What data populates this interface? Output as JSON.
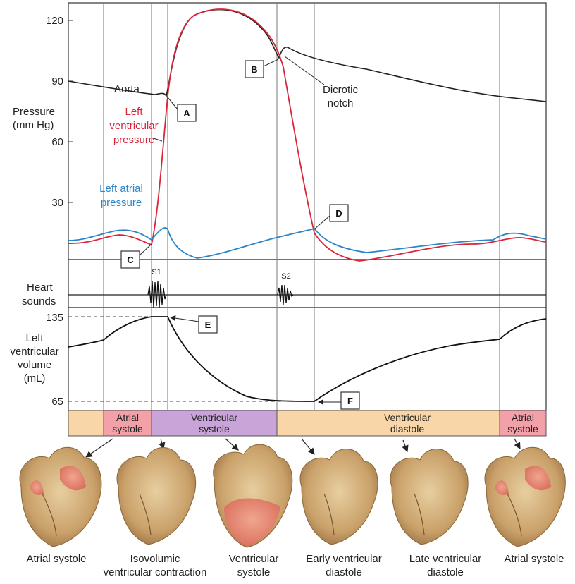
{
  "pressure_axis": {
    "label_line1": "Pressure",
    "label_line2": "(mm Hg)",
    "ticks": [
      "120",
      "90",
      "60",
      "30"
    ]
  },
  "curves": {
    "aorta": "Aorta",
    "lv_line1": "Left",
    "lv_line2": "ventricular",
    "lv_line3": "pressure",
    "la_line1": "Left atrial",
    "la_line2": "pressure",
    "dicrotic_line1": "Dicrotic",
    "dicrotic_line2": "notch"
  },
  "heart_sounds": {
    "label_line1": "Heart",
    "label_line2": "sounds",
    "s1": "S1",
    "s2": "S2"
  },
  "volume_axis": {
    "label_line1": "Left",
    "label_line2": "ventricular",
    "label_line3": "volume",
    "label_line4": "(mL)",
    "ticks": [
      "135",
      "65"
    ]
  },
  "markers": [
    "A",
    "B",
    "C",
    "D",
    "E",
    "F"
  ],
  "phases": {
    "atrial1_line1": "Atrial",
    "atrial1_line2": "systole",
    "vsys_line1": "Ventricular",
    "vsys_line2": "systole",
    "vdia_line1": "Ventricular",
    "vdia_line2": "diastole",
    "atrial2_line1": "Atrial",
    "atrial2_line2": "systole"
  },
  "heart_captions": {
    "c1": "Atrial systole",
    "c2_line1": "Isovolumic",
    "c2_line2": "ventricular contraction",
    "c3_line1": "Ventricular",
    "c3_line2": "systole",
    "c4_line1": "Early ventricular",
    "c4_line2": "diastole",
    "c5_line1": "Late ventricular",
    "c5_line2": "diastole",
    "c6": "Atrial systole"
  },
  "colors": {
    "aorta": "#222222",
    "left_ventricle": "#d8263a",
    "left_atrium": "#2a86c8",
    "atrial_phase": "#f3a0a8",
    "ventricular_systole_phase": "#c9a4d8",
    "ventricular_diastole_phase": "#f9d6a8"
  }
}
